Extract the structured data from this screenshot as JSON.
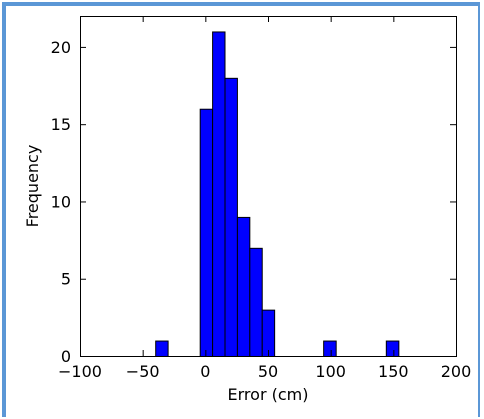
{
  "chart_data": {
    "type": "bar",
    "subtype": "histogram",
    "title": "",
    "xlabel": "Error (cm)",
    "ylabel": "Frequency",
    "xlim": [
      -100,
      200
    ],
    "ylim": [
      0,
      22
    ],
    "grid": false,
    "bar_color": "#0000ff",
    "edge_color": "#000000",
    "bin_width": 9.9,
    "bins": [
      {
        "x0": -40,
        "x1": -30.1,
        "count": 1
      },
      {
        "x0": -4.5,
        "x1": 5.4,
        "count": 16
      },
      {
        "x0": 5.4,
        "x1": 15.3,
        "count": 21
      },
      {
        "x0": 15.3,
        "x1": 25.2,
        "count": 18
      },
      {
        "x0": 25.2,
        "x1": 35.1,
        "count": 9
      },
      {
        "x0": 35.1,
        "x1": 45,
        "count": 7
      },
      {
        "x0": 45,
        "x1": 54.9,
        "count": 3
      },
      {
        "x0": 94,
        "x1": 104,
        "count": 1
      },
      {
        "x0": 144,
        "x1": 154,
        "count": 1
      }
    ],
    "xticks": [
      -100,
      -50,
      0,
      50,
      100,
      150,
      200
    ],
    "xtick_labels": [
      "−100",
      "−50",
      "0",
      "50",
      "100",
      "150",
      "200"
    ],
    "yticks": [
      0,
      5,
      10,
      15,
      20
    ],
    "ytick_labels": [
      "0",
      "5",
      "10",
      "15",
      "20"
    ]
  }
}
